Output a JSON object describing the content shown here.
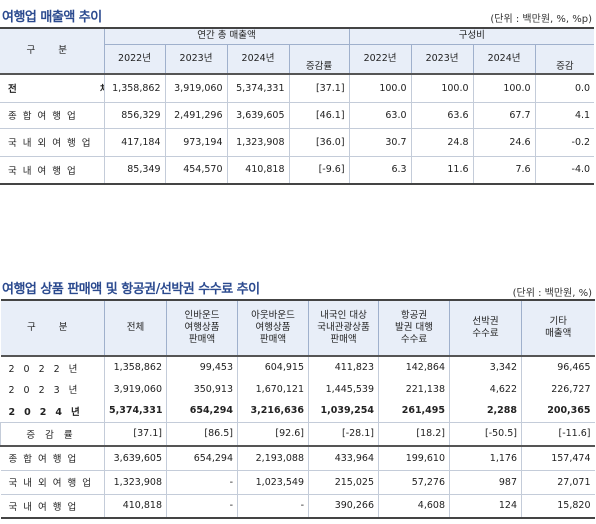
{
  "section1": {
    "title": "여행업 매출액 추이",
    "unit": "(단위 : 백만원, %, %p)",
    "header": {
      "category": "구 분",
      "group_sales": "연간 총 매출액",
      "group_share": "구성비",
      "years": [
        "2022년",
        "2023년",
        "2024년"
      ],
      "change": "증감률",
      "change2": "증감"
    },
    "rows": [
      {
        "label": "전 체",
        "values": [
          "1,358,862",
          "3,919,060",
          "5,374,331",
          "[37.1]",
          "100.0",
          "100.0",
          "100.0",
          "0.0"
        ]
      },
      {
        "label": "종합여행업",
        "values": [
          "856,329",
          "2,491,296",
          "3,639,605",
          "[46.1]",
          "63.0",
          "63.6",
          "67.7",
          "4.1"
        ]
      },
      {
        "label": "국내외여행업",
        "values": [
          "417,184",
          "973,194",
          "1,323,908",
          "[36.0]",
          "30.7",
          "24.8",
          "24.6",
          "-0.2"
        ]
      },
      {
        "label": "국내여행업",
        "values": [
          "85,349",
          "454,570",
          "410,818",
          "[-9.6]",
          "6.3",
          "11.6",
          "7.6",
          "-4.0"
        ]
      }
    ]
  },
  "section2": {
    "title": "여행업 상품 판매액 및 항공권/선박권 수수료 추이",
    "unit": "(단위 : 백만원, %)",
    "header": {
      "category": "구 분",
      "cols": [
        "전체",
        "인바운드\n여행상품\n판매액",
        "아웃바운드\n여행상품\n판매액",
        "내국인 대상\n국내관광상품\n판매액",
        "항공권\n발권 대행\n수수료",
        "선박권\n수수료",
        "기타\n매출액"
      ]
    },
    "rows": [
      {
        "label": "2022년",
        "values": [
          "1,358,862",
          "99,453",
          "604,915",
          "411,823",
          "142,864",
          "3,342",
          "96,465"
        ]
      },
      {
        "label": "2023년",
        "values": [
          "3,919,060",
          "350,913",
          "1,670,121",
          "1,445,539",
          "221,138",
          "4,622",
          "226,727"
        ]
      },
      {
        "label": "2024년",
        "values": [
          "5,374,331",
          "654,294",
          "3,216,636",
          "1,039,254",
          "261,495",
          "2,288",
          "200,365"
        ]
      },
      {
        "label": "증감률",
        "values": [
          "[37.1]",
          "[86.5]",
          "[92.6]",
          "[-28.1]",
          "[18.2]",
          "[-50.5]",
          "[-11.6]"
        ]
      },
      {
        "label": "종합여행업",
        "values": [
          "3,639,605",
          "654,294",
          "2,193,088",
          "433,964",
          "199,610",
          "1,176",
          "157,474"
        ]
      },
      {
        "label": "국내외여행업",
        "values": [
          "1,323,908",
          "-",
          "1,023,549",
          "215,025",
          "57,276",
          "987",
          "27,071"
        ]
      },
      {
        "label": "국내여행업",
        "values": [
          "410,818",
          "-",
          "-",
          "390,266",
          "4,608",
          "124",
          "15,820"
        ]
      }
    ]
  }
}
